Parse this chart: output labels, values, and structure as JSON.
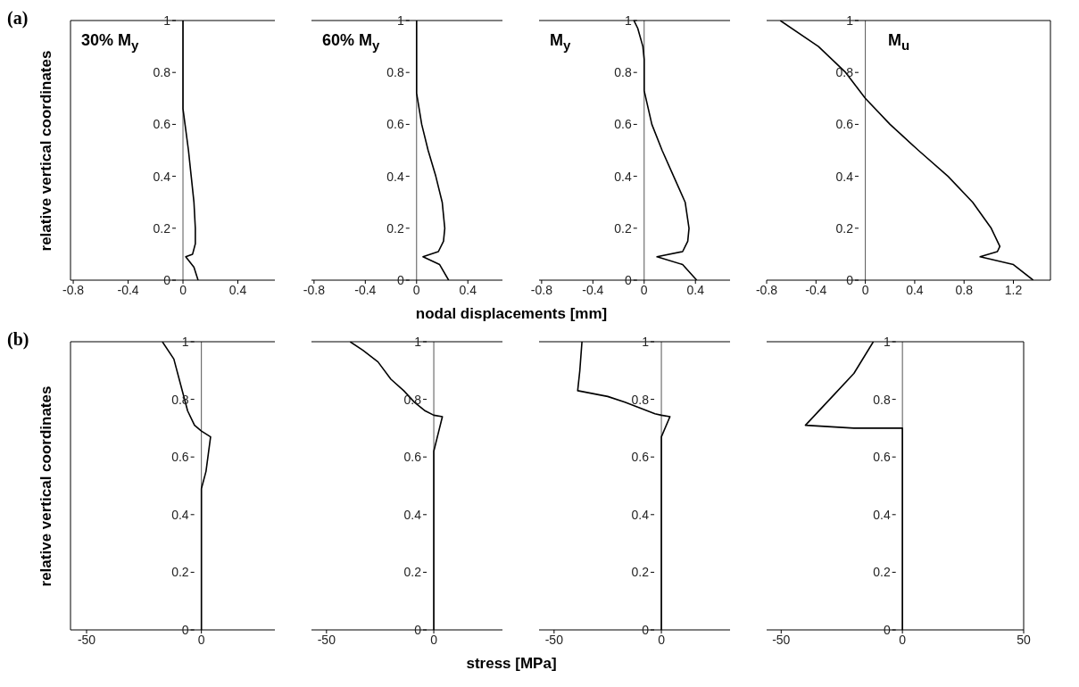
{
  "chart_data": [
    {
      "type": "line",
      "ylabel": "relative vertical coordinates",
      "annotations": [
        "(a)",
        "30% M$_{y}$"
      ],
      "xlim": [
        -0.82,
        0.67
      ],
      "xticks": [
        -0.8,
        -0.4,
        0,
        0.4
      ],
      "ylim": [
        0,
        1
      ],
      "yticks": [
        0,
        0.2,
        0.4,
        0.6,
        0.8,
        1
      ],
      "marker": "none",
      "series": [
        {
          "color": "#000000",
          "x": [
            0.11,
            0.08,
            0.02,
            0.07,
            0.09,
            0.09,
            0.08,
            0.06,
            0.04,
            0.015,
            0,
            0
          ],
          "values": [
            0,
            0.05,
            0.09,
            0.1,
            0.14,
            0.2,
            0.3,
            0.4,
            0.5,
            0.6,
            0.66,
            1
          ]
        }
      ]
    },
    {
      "type": "line",
      "xlabel": "nodal displacements [mm]",
      "annotations": [
        "60% M$_{y}$"
      ],
      "xlim": [
        -0.82,
        0.67
      ],
      "xticks": [
        -0.8,
        -0.4,
        0,
        0.4
      ],
      "ylim": [
        0,
        1
      ],
      "yticks": [
        0,
        0.2,
        0.4,
        0.6,
        0.8,
        1
      ],
      "marker": "none",
      "series": [
        {
          "color": "#000000",
          "x": [
            0.25,
            0.18,
            0.05,
            0.17,
            0.21,
            0.22,
            0.2,
            0.15,
            0.09,
            0.04,
            0,
            0
          ],
          "values": [
            0,
            0.06,
            0.09,
            0.11,
            0.15,
            0.2,
            0.3,
            0.4,
            0.5,
            0.6,
            0.72,
            1
          ]
        }
      ]
    },
    {
      "type": "line",
      "annotations": [
        "M$_{y}$"
      ],
      "xlim": [
        -0.82,
        0.67
      ],
      "xticks": [
        -0.8,
        -0.4,
        0,
        0.4
      ],
      "ylim": [
        0,
        1
      ],
      "yticks": [
        0,
        0.2,
        0.4,
        0.6,
        0.8,
        1
      ],
      "marker": "none",
      "series": [
        {
          "color": "#000000",
          "x": [
            0.41,
            0.3,
            0.1,
            0.3,
            0.34,
            0.35,
            0.32,
            0.23,
            0.14,
            0.06,
            0,
            0,
            -0.01,
            -0.05,
            -0.08
          ],
          "values": [
            0,
            0.06,
            0.09,
            0.11,
            0.15,
            0.2,
            0.3,
            0.4,
            0.5,
            0.6,
            0.73,
            0.85,
            0.9,
            0.97,
            1
          ]
        }
      ]
    },
    {
      "type": "line",
      "annotations": [
        "M$_{u}$"
      ],
      "xlim": [
        -0.8,
        1.5
      ],
      "xticks": [
        -0.8,
        -0.4,
        0,
        0.4,
        0.8,
        1.2
      ],
      "ylim": [
        0,
        1
      ],
      "yticks": [
        0,
        0.2,
        0.4,
        0.6,
        0.8,
        1
      ],
      "marker": "none",
      "series": [
        {
          "color": "#000000",
          "x": [
            1.36,
            1.2,
            0.93,
            1.07,
            1.09,
            1.02,
            0.87,
            0.67,
            0.43,
            0.2,
            0,
            -0.16,
            -0.38,
            -0.69
          ],
          "values": [
            0,
            0.06,
            0.09,
            0.11,
            0.13,
            0.2,
            0.3,
            0.4,
            0.5,
            0.6,
            0.7,
            0.8,
            0.9,
            1
          ]
        }
      ]
    },
    {
      "type": "line",
      "ylabel": "relative vertical coordinates",
      "annotations": [
        "(b)"
      ],
      "xlim": [
        -57,
        32
      ],
      "xticks": [
        -50,
        0
      ],
      "ylim": [
        0,
        1
      ],
      "yticks": [
        0,
        0.2,
        0.4,
        0.6,
        0.8,
        1
      ],
      "marker": "none",
      "series": [
        {
          "color": "#000000",
          "x": [
            0,
            0,
            2,
            4,
            0,
            -3,
            -6,
            -9,
            -12,
            -17
          ],
          "values": [
            0,
            0.49,
            0.55,
            0.67,
            0.69,
            0.71,
            0.76,
            0.85,
            0.94,
            1
          ]
        }
      ]
    },
    {
      "type": "line",
      "xlabel": "stress [MPa]",
      "xlim": [
        -57,
        32
      ],
      "xticks": [
        -50,
        0
      ],
      "ylim": [
        0,
        1
      ],
      "yticks": [
        0,
        0.2,
        0.4,
        0.6,
        0.8,
        1
      ],
      "marker": "none",
      "series": [
        {
          "color": "#000000",
          "x": [
            0,
            0,
            2,
            4,
            0,
            -4,
            -9,
            -14,
            -20,
            -26,
            -33,
            -39
          ],
          "values": [
            0,
            0.62,
            0.68,
            0.74,
            0.745,
            0.76,
            0.79,
            0.83,
            0.87,
            0.93,
            0.97,
            1
          ]
        }
      ]
    },
    {
      "type": "line",
      "xlim": [
        -57,
        32
      ],
      "xticks": [
        -50,
        0
      ],
      "ylim": [
        0,
        1
      ],
      "yticks": [
        0,
        0.2,
        0.4,
        0.6,
        0.8,
        1
      ],
      "marker": "none",
      "series": [
        {
          "color": "#000000",
          "x": [
            0,
            0,
            4,
            0,
            -3,
            -10,
            -17,
            -25,
            -32,
            -39,
            -38,
            -37
          ],
          "values": [
            0,
            0.67,
            0.74,
            0.745,
            0.75,
            0.77,
            0.79,
            0.81,
            0.82,
            0.83,
            0.9,
            1
          ]
        }
      ]
    },
    {
      "type": "line",
      "xlim": [
        -56,
        50
      ],
      "xticks": [
        -50,
        0,
        50
      ],
      "ylim": [
        0,
        1
      ],
      "yticks": [
        0,
        0.2,
        0.4,
        0.6,
        0.8,
        1
      ],
      "marker": "none",
      "series": [
        {
          "color": "#000000",
          "x": [
            0,
            0,
            -20,
            -40,
            -30,
            -20,
            -12
          ],
          "values": [
            0,
            0.7,
            0.7,
            0.71,
            0.8,
            0.89,
            1
          ]
        }
      ]
    }
  ]
}
